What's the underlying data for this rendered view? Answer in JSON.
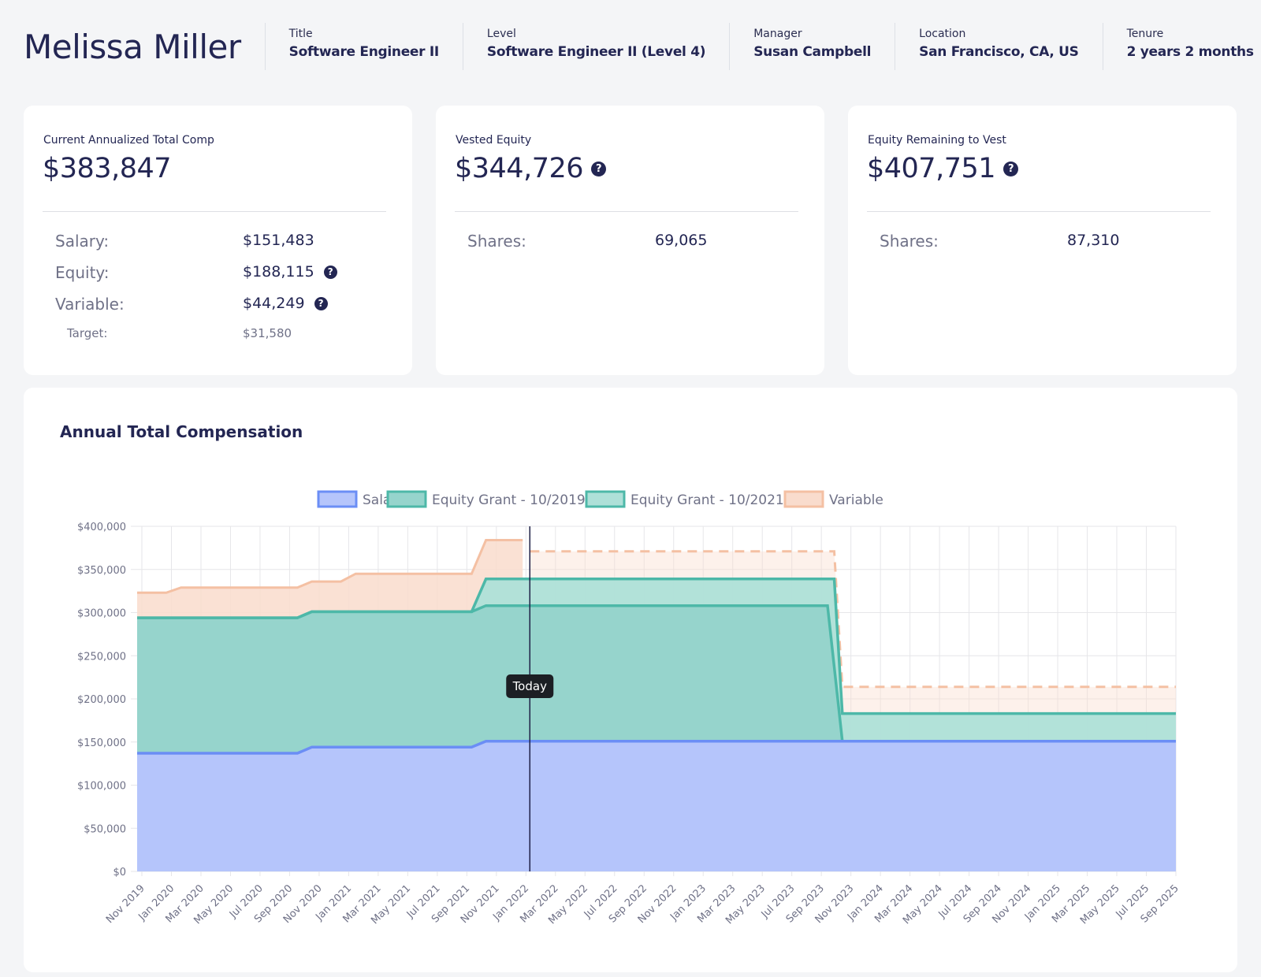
{
  "employee": {
    "name": "Melissa Miller",
    "fields": [
      {
        "label": "Title",
        "value": "Software Engineer II"
      },
      {
        "label": "Level",
        "value": "Software Engineer II (Level 4)"
      },
      {
        "label": "Manager",
        "value": "Susan Campbell"
      },
      {
        "label": "Location",
        "value": "San Francisco, CA, US"
      },
      {
        "label": "Tenure",
        "value": "2 years 2 months"
      }
    ]
  },
  "cards": {
    "total": {
      "title": "Current Annualized Total Comp",
      "amount": "$383,847",
      "rows": [
        {
          "label": "Salary:",
          "value": "$151,483"
        },
        {
          "label": "Equity:",
          "value": "$188,115"
        },
        {
          "label": "Variable:",
          "value": "$44,249"
        }
      ],
      "target": {
        "label": "Target:",
        "value": "$31,580"
      }
    },
    "vested": {
      "title": "Vested Equity",
      "amount": "$344,726",
      "shares_label": "Shares:",
      "shares": "69,065"
    },
    "remaining": {
      "title": "Equity Remaining to Vest",
      "amount": "$407,751",
      "shares_label": "Shares:",
      "shares": "87,310"
    }
  },
  "icons": {
    "help": "question-circle-icon",
    "help_glyph": "?"
  },
  "chart_data": {
    "type": "area",
    "stacked": true,
    "title": "Annual Total Compensation",
    "xlabel": "",
    "ylabel": "",
    "ylim": [
      0,
      400000
    ],
    "grid": true,
    "legend_position": "top-center",
    "today_label": "Today",
    "today_x": "2022-01-15",
    "y_ticks": [
      "$0",
      "$50,000",
      "$100,000",
      "$150,000",
      "$200,000",
      "$250,000",
      "$300,000",
      "$350,000",
      "$400,000"
    ],
    "x_labels": [
      "Nov 2019",
      "Jan 2020",
      "Mar 2020",
      "May 2020",
      "Jul 2020",
      "Sep 2020",
      "Nov 2020",
      "Jan 2021",
      "Mar 2021",
      "May 2021",
      "Jul 2021",
      "Sep 2021",
      "Nov 2021",
      "Jan 2022",
      "Mar 2022",
      "May 2022",
      "Jul 2022",
      "Sep 2022",
      "Nov 2022",
      "Jan 2023",
      "Mar 2023",
      "May 2023",
      "Jul 2023",
      "Sep 2023",
      "Nov 2023",
      "Jan 2024",
      "Mar 2024",
      "May 2024",
      "Jul 2024",
      "Sep 2024",
      "Nov 2024",
      "Jan 2025",
      "Mar 2025",
      "May 2025",
      "Jul 2025",
      "Sep 2025"
    ],
    "series": [
      {
        "name": "Salary",
        "fill": "#b5c5fb",
        "stroke": "#6b8ef5",
        "points": [
          [
            "2019-10-15",
            137000
          ],
          [
            "2020-09-15",
            137000
          ],
          [
            "2020-10-15",
            144000
          ],
          [
            "2021-09-15",
            144000
          ],
          [
            "2021-10-15",
            151000
          ],
          [
            "2025-09-30",
            151000
          ]
        ]
      },
      {
        "name": "Equity Grant - 10/2019",
        "fill": "#96d4cc",
        "stroke": "#4db8a8",
        "points": [
          [
            "2019-10-15",
            294000
          ],
          [
            "2020-09-15",
            294000
          ],
          [
            "2020-10-15",
            301000
          ],
          [
            "2021-09-15",
            301000
          ],
          [
            "2021-10-15",
            308000
          ],
          [
            "2023-10-01",
            308000
          ],
          [
            "2023-11-01",
            151000
          ],
          [
            "2025-09-30",
            151000
          ]
        ]
      },
      {
        "name": "Equity Grant - 10/2021",
        "fill": "#aee0d8",
        "stroke": "#4db8a8",
        "points": [
          [
            "2019-10-15",
            294000
          ],
          [
            "2020-09-15",
            294000
          ],
          [
            "2020-10-15",
            301000
          ],
          [
            "2021-09-15",
            301000
          ],
          [
            "2021-10-15",
            339000
          ],
          [
            "2023-10-15",
            339000
          ],
          [
            "2023-11-01",
            183000
          ],
          [
            "2025-09-30",
            183000
          ]
        ]
      },
      {
        "name": "Variable",
        "fill": "#f9dccd",
        "stroke": "#f4c0a3",
        "points": [
          [
            "2019-10-15",
            323000
          ],
          [
            "2019-12-15",
            323000
          ],
          [
            "2020-01-15",
            329000
          ],
          [
            "2020-09-15",
            329000
          ],
          [
            "2020-10-15",
            336000
          ],
          [
            "2020-12-15",
            336000
          ],
          [
            "2021-01-15",
            345000
          ],
          [
            "2021-09-15",
            345000
          ],
          [
            "2021-10-15",
            384000
          ],
          [
            "2021-12-31",
            384000
          ]
        ],
        "projected": [
          [
            "2022-01-15",
            371000
          ],
          [
            "2023-10-15",
            371000
          ],
          [
            "2023-11-01",
            214000
          ],
          [
            "2025-09-30",
            214000
          ]
        ]
      }
    ]
  }
}
